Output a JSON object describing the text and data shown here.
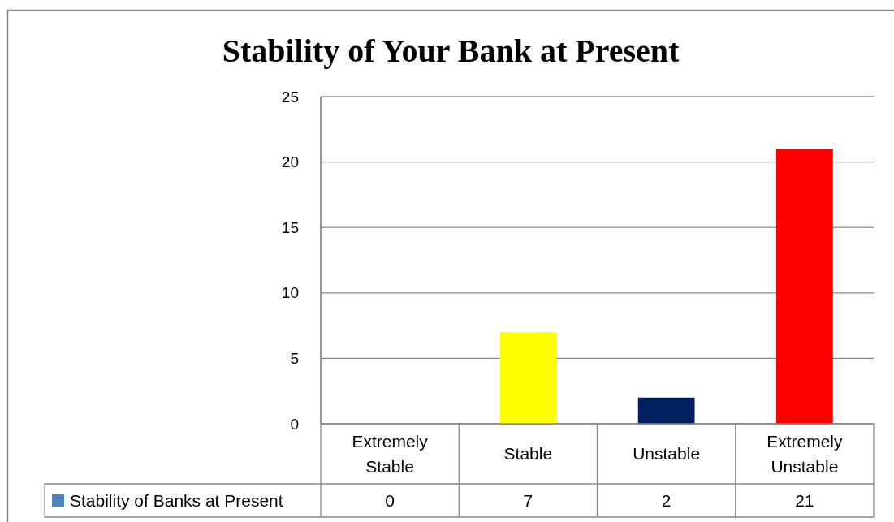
{
  "chart_data": {
    "type": "bar",
    "title": "Stability of Your Bank at Present",
    "categories": [
      "Extremely Stable",
      "Stable",
      "Unstable",
      "Extremely Unstable"
    ],
    "series": [
      {
        "name": "Stability of Banks at Present",
        "color": "#4f81bd",
        "colors": [
          "#4f81bd",
          "#ffff00",
          "#002060",
          "#ff0000"
        ],
        "values": [
          0,
          7,
          2,
          21
        ]
      }
    ],
    "ylim": [
      0,
      25
    ],
    "yticks": [
      0,
      5,
      10,
      15,
      20,
      25
    ],
    "grid": "y",
    "legend": "bottom",
    "data_labels": true
  }
}
